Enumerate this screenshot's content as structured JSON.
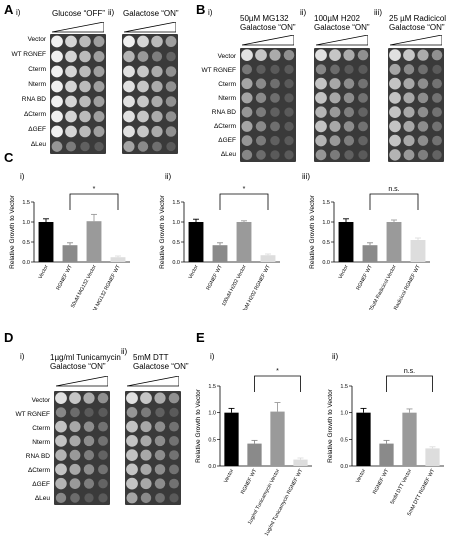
{
  "panels": {
    "A": {
      "label": "A",
      "sub_i": "i)",
      "sub_ii": "ii)",
      "cap_i": "Glucose “OFF”",
      "cap_ii": "Galactose “ON”"
    },
    "B": {
      "label": "B",
      "sub_i": "i)",
      "sub_ii": "ii)",
      "sub_iii": "iii)",
      "cap_i_1": "50µM MG132",
      "cap_i_2": "Galactose “ON”",
      "cap_ii_1": "100µM H202",
      "cap_ii_2": "Galactose “ON”",
      "cap_iii_1": "25 µM Radicicol",
      "cap_iii_2": "Galactose “ON”"
    },
    "C": {
      "label": "C",
      "sub_i": "i)",
      "sub_ii": "ii)",
      "sub_iii": "iii)"
    },
    "D": {
      "label": "D",
      "sub_i": "i)",
      "sub_ii": "ii)",
      "cap_i_1": "1µg/ml Tunicamycin",
      "cap_i_2": "Galactose “ON”",
      "cap_ii_1": "5mM DTT",
      "cap_ii_2": "Galactose “ON”"
    },
    "E": {
      "label": "E",
      "sub_i": "i)",
      "sub_ii": "ii)"
    }
  },
  "strains": [
    "Vector",
    "WT RGNEF",
    "Cterm",
    "Nterm",
    "RNA BD",
    "ΔCterm",
    "ΔGEF",
    "ΔLeu"
  ],
  "chart_data": [
    {
      "type": "bar",
      "id": "C-i",
      "ylabel": "Relative Growth to Vector",
      "ylim": [
        0,
        1.5
      ],
      "yticks": [
        "0.0",
        "0.5",
        "1.0",
        "1.5"
      ],
      "categories": [
        "Vector",
        "RGNEF WT",
        "50uM MG132 Vector",
        "50uM MG132 RGNEF WT"
      ],
      "values": [
        1.0,
        0.42,
        1.02,
        0.12
      ],
      "errors": [
        0.08,
        0.06,
        0.17,
        0.03
      ],
      "colors": [
        "#000000",
        "#8a8a8a",
        "#9a9a9a",
        "#dddddd"
      ],
      "significance": "*"
    },
    {
      "type": "bar",
      "id": "C-ii",
      "ylabel": "Relative Growth to Vector",
      "ylim": [
        0,
        1.5
      ],
      "yticks": [
        "0.0",
        "0.5",
        "1.0",
        "1.5"
      ],
      "categories": [
        "Vector",
        "RGNEF WT",
        "100uM H202 Vector",
        "100uM H202 RGNEF WT"
      ],
      "values": [
        1.0,
        0.42,
        1.0,
        0.17
      ],
      "errors": [
        0.07,
        0.06,
        0.03,
        0.03
      ],
      "colors": [
        "#000000",
        "#8a8a8a",
        "#9a9a9a",
        "#dddddd"
      ],
      "significance": "*"
    },
    {
      "type": "bar",
      "id": "C-iii",
      "ylabel": "Relative Growth to Vector",
      "ylim": [
        0,
        1.5
      ],
      "yticks": [
        "0.0",
        "0.5",
        "1.0",
        "1.5"
      ],
      "categories": [
        "Vector",
        "RGNEF WT",
        "25uM Radicicol Vector",
        "25uM Radicicol RGNEF WT"
      ],
      "values": [
        1.0,
        0.42,
        1.0,
        0.55
      ],
      "errors": [
        0.08,
        0.06,
        0.05,
        0.05
      ],
      "colors": [
        "#000000",
        "#8a8a8a",
        "#9a9a9a",
        "#dddddd"
      ],
      "significance": "n.s."
    },
    {
      "type": "bar",
      "id": "E-i",
      "ylabel": "Relative Growth to Vector",
      "ylim": [
        0,
        1.5
      ],
      "yticks": [
        "0.0",
        "0.5",
        "1.0",
        "1.5"
      ],
      "categories": [
        "Vector",
        "RGNEF WT",
        "1ug/ml Tunicamycin Vector",
        "1ug/ml Tunicamycin RGNEF WT"
      ],
      "values": [
        1.0,
        0.42,
        1.02,
        0.12
      ],
      "errors": [
        0.08,
        0.06,
        0.17,
        0.03
      ],
      "colors": [
        "#000000",
        "#8a8a8a",
        "#9a9a9a",
        "#dddddd"
      ],
      "significance": "*"
    },
    {
      "type": "bar",
      "id": "E-ii",
      "ylabel": "Relative Growth to Vector",
      "ylim": [
        0,
        1.5
      ],
      "yticks": [
        "0.0",
        "0.5",
        "1.0",
        "1.5"
      ],
      "categories": [
        "Vector",
        "RGNEF WT",
        "5mM DTT Vector",
        "5mM DTT RGNEF WT"
      ],
      "values": [
        1.0,
        0.42,
        1.0,
        0.33
      ],
      "errors": [
        0.08,
        0.06,
        0.07,
        0.03
      ],
      "colors": [
        "#000000",
        "#8a8a8a",
        "#9a9a9a",
        "#dddddd"
      ],
      "significance": "n.s."
    }
  ],
  "plates": [
    {
      "id": "A-i",
      "growth": [
        1,
        1,
        1,
        1,
        1,
        1,
        1,
        0.4
      ]
    },
    {
      "id": "A-ii",
      "growth": [
        1,
        0.6,
        0.9,
        0.9,
        0.9,
        0.9,
        0.9,
        0.5
      ]
    },
    {
      "id": "B-i",
      "growth": [
        0.9,
        0.2,
        0.5,
        0.5,
        0.4,
        0.5,
        0.4,
        0.3
      ]
    },
    {
      "id": "B-ii",
      "growth": [
        0.9,
        0.3,
        0.7,
        0.7,
        0.6,
        0.7,
        0.6,
        0.4
      ]
    },
    {
      "id": "B-iii",
      "growth": [
        0.9,
        0.5,
        0.7,
        0.7,
        0.7,
        0.7,
        0.7,
        0.6
      ]
    },
    {
      "id": "D-i",
      "growth": [
        0.9,
        0.3,
        0.7,
        0.7,
        0.6,
        0.7,
        0.6,
        0.3
      ]
    },
    {
      "id": "D-ii",
      "growth": [
        0.9,
        0.4,
        0.7,
        0.7,
        0.7,
        0.7,
        0.7,
        0.5
      ]
    }
  ]
}
